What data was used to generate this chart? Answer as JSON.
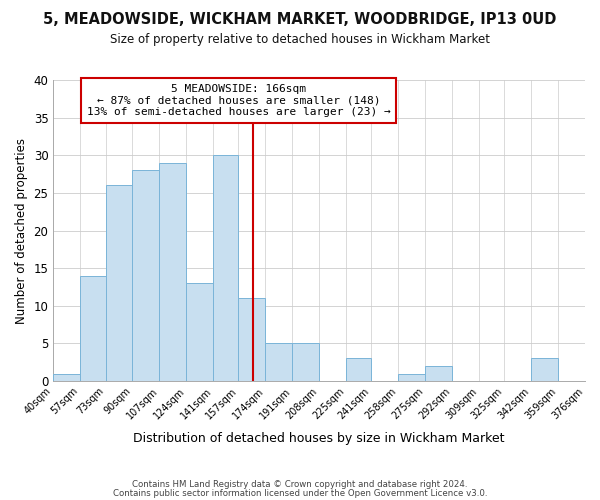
{
  "title": "5, MEADOWSIDE, WICKHAM MARKET, WOODBRIDGE, IP13 0UD",
  "subtitle": "Size of property relative to detached houses in Wickham Market",
  "xlabel": "Distribution of detached houses by size in Wickham Market",
  "ylabel": "Number of detached properties",
  "bar_color": "#c8dff0",
  "bar_edge_color": "#7ab4d8",
  "bins": [
    40,
    57,
    73,
    90,
    107,
    124,
    141,
    157,
    174,
    191,
    208,
    225,
    241,
    258,
    275,
    292,
    309,
    325,
    342,
    359,
    376
  ],
  "counts": [
    1,
    14,
    26,
    28,
    29,
    13,
    30,
    11,
    5,
    5,
    0,
    3,
    0,
    1,
    2,
    0,
    0,
    0,
    3,
    0
  ],
  "tick_labels": [
    "40sqm",
    "57sqm",
    "73sqm",
    "90sqm",
    "107sqm",
    "124sqm",
    "141sqm",
    "157sqm",
    "174sqm",
    "191sqm",
    "208sqm",
    "225sqm",
    "241sqm",
    "258sqm",
    "275sqm",
    "292sqm",
    "309sqm",
    "325sqm",
    "342sqm",
    "359sqm",
    "376sqm"
  ],
  "property_size": 166,
  "property_line_color": "#cc0000",
  "annotation_title": "5 MEADOWSIDE: 166sqm",
  "annotation_line1": "← 87% of detached houses are smaller (148)",
  "annotation_line2": "13% of semi-detached houses are larger (23) →",
  "annotation_box_color": "#ffffff",
  "annotation_box_edge_color": "#cc0000",
  "ylim": [
    0,
    40
  ],
  "yticks": [
    0,
    5,
    10,
    15,
    20,
    25,
    30,
    35,
    40
  ],
  "footer1": "Contains HM Land Registry data © Crown copyright and database right 2024.",
  "footer2": "Contains public sector information licensed under the Open Government Licence v3.0.",
  "bg_color": "#ffffff",
  "plot_bg_color": "#ffffff",
  "grid_color": "#cccccc"
}
